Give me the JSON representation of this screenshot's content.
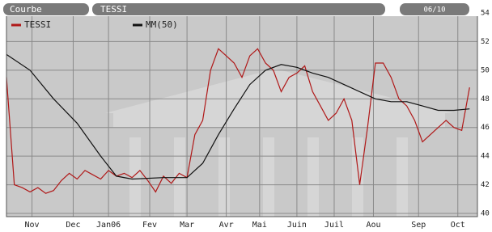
{
  "chart_data": {
    "type": "line",
    "header": {
      "mode": "Courbe",
      "symbol": "TESSI",
      "date": "06/10"
    },
    "series": [
      {
        "name": "TESSI",
        "color": "#b01818",
        "x": [
          0,
          4,
          8,
          12,
          16,
          20,
          24,
          28,
          32,
          36,
          40,
          44,
          48,
          52,
          56,
          60,
          64,
          68,
          72,
          76,
          80,
          84,
          88,
          92,
          96,
          100,
          104,
          108,
          112,
          116,
          120,
          124,
          128,
          132,
          136,
          140,
          144,
          148,
          152,
          156,
          160,
          164,
          168,
          172,
          176,
          180,
          184,
          188,
          192,
          196,
          200,
          204,
          208,
          212,
          216,
          220,
          224,
          228,
          232,
          236
        ],
        "values": [
          49.5,
          42,
          41.8,
          41.5,
          41.8,
          41.4,
          41.6,
          42.3,
          42.8,
          42.4,
          43,
          42.7,
          42.4,
          43,
          42.6,
          42.8,
          42.5,
          43,
          42.3,
          41.5,
          42.6,
          42.1,
          42.8,
          42.5,
          45.5,
          46.5,
          50,
          51.5,
          51,
          50.5,
          49.5,
          51,
          51.5,
          50.5,
          50,
          48.5,
          49.5,
          49.8,
          50.3,
          48.5,
          47.5,
          46.5,
          47,
          48,
          46.5,
          42,
          46,
          50.5,
          50.5,
          49.5,
          48,
          47.5,
          46.5,
          45,
          45.5,
          46,
          46.5,
          46,
          45.8,
          48.8
        ]
      },
      {
        "name": "MM(50)",
        "color": "#111111",
        "x": [
          0,
          12,
          24,
          36,
          48,
          56,
          64,
          80,
          92,
          100,
          108,
          116,
          124,
          132,
          140,
          148,
          156,
          164,
          172,
          180,
          188,
          196,
          204,
          212,
          220,
          228,
          236
        ],
        "values": [
          51.1,
          50,
          48,
          46.3,
          44,
          42.6,
          42.4,
          42.5,
          42.5,
          43.5,
          45.5,
          47.3,
          49,
          50,
          50.4,
          50.2,
          49.8,
          49.5,
          49,
          48.5,
          48,
          47.8,
          47.8,
          47.5,
          47.2,
          47.2,
          47.3
        ]
      }
    ],
    "xlim": [
      0,
      240
    ],
    "xticks": [
      {
        "value": 13,
        "label": "Nov"
      },
      {
        "value": 34,
        "label": "Dec"
      },
      {
        "value": 52,
        "label": "Jan06"
      },
      {
        "value": 73,
        "label": "Fev"
      },
      {
        "value": 92,
        "label": "Mar"
      },
      {
        "value": 112,
        "label": "Avr"
      },
      {
        "value": 129,
        "label": "Mai"
      },
      {
        "value": 148,
        "label": "Juin"
      },
      {
        "value": 167,
        "label": "Juil"
      },
      {
        "value": 187,
        "label": "Aou"
      },
      {
        "value": 210,
        "label": "Sep"
      },
      {
        "value": 230,
        "label": "Oct"
      }
    ],
    "ylim": [
      40,
      54
    ],
    "yticks": [
      40,
      42,
      44,
      46,
      48,
      50,
      52,
      54
    ],
    "grid": true
  }
}
